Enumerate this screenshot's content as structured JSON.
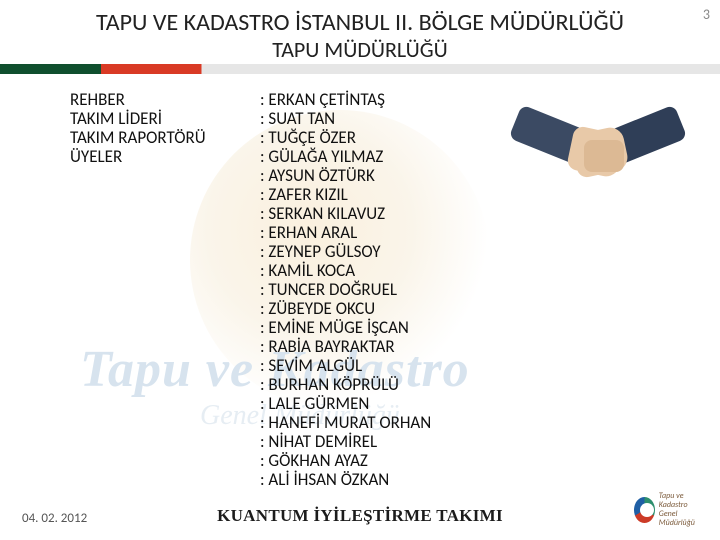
{
  "page_number": "3",
  "title": "TAPU VE KADASTRO İSTANBUL II. BÖLGE MÜDÜRLÜĞÜ",
  "subtitle": "TAPU MÜDÜRLÜĞÜ",
  "divider_colors": {
    "left": "#0f4f2e",
    "mid": "#d93a25",
    "right": "#e6e6e6"
  },
  "labels": {
    "rehber": "REHBER",
    "takim_lideri": "TAKIM LİDERİ",
    "takim_raportoru": "TAKIM RAPORTÖRÜ",
    "uyeler": "ÜYELER"
  },
  "values": {
    "rehber": ": ERKAN ÇETİNTAŞ",
    "takim_lideri": ": SUAT TAN",
    "takim_raportoru": ": TUĞÇE ÖZER",
    "members": [
      ": GÜLAĞA YILMAZ",
      ": AYSUN ÖZTÜRK",
      ": ZAFER KIZIL",
      ": SERKAN KILAVUZ",
      ": ERHAN ARAL",
      ": ZEYNEP GÜLSOY",
      ": KAMİL KOCA",
      ": TUNCER DOĞRUEL",
      ": ZÜBEYDE OKCU",
      ": EMİNE MÜGE İŞCAN",
      ": RABİA BAYRAKTAR",
      ": SEVİM ALGÜL",
      ": BURHAN KÖPRÜLÜ",
      ": LALE GÜRMEN",
      ": HANEFİ MURAT ORHAN",
      ": NİHAT DEMİREL",
      ": GÖKHAN AYAZ",
      ": ALİ İHSAN ÖZKAN"
    ]
  },
  "footer": {
    "date": "04. 02. 2012",
    "title": "KUANTUM İYİLEŞTİRME TAKIMI",
    "logo_text_line1": "Tapu ve Kadastro",
    "logo_text_line2": "Genel Müdürlüğü"
  },
  "watermark": {
    "line1": "Tapu ve Kadastro",
    "line2": "Genel Müdürlüğü"
  },
  "colors": {
    "text": "#111111",
    "muted": "#888888",
    "background": "#ffffff"
  }
}
